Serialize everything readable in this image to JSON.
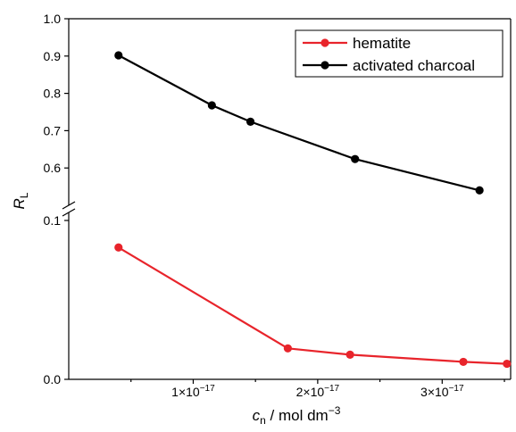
{
  "chart_data": {
    "type": "line",
    "xlabel": {
      "italic": "c",
      "subscript": "n",
      "rest": " / mol dm",
      "superscript": "−3"
    },
    "ylabel": {
      "italic": "R",
      "subscript": "L"
    },
    "x_tick_labels": [
      {
        "value": 1e-17,
        "mantissa": "1×10",
        "exponent": "−17"
      },
      {
        "value": 2e-17,
        "mantissa": "2×10",
        "exponent": "−17"
      },
      {
        "value": 3e-17,
        "mantissa": "3×10",
        "exponent": "−17"
      }
    ],
    "xlim": [
      0,
      3.55e-17
    ],
    "y_axis_break": true,
    "y_upper_segment": {
      "range": [
        0.5,
        1.0
      ],
      "ticks": [
        {
          "value": 0.6,
          "label": "0.6"
        },
        {
          "value": 0.7,
          "label": "0.7"
        },
        {
          "value": 0.8,
          "label": "0.8"
        },
        {
          "value": 0.9,
          "label": "0.9"
        },
        {
          "value": 1.0,
          "label": "1.0"
        }
      ]
    },
    "y_lower_segment": {
      "range": [
        0.0,
        0.1
      ],
      "ticks": [
        {
          "value": 0.0,
          "label": "0.0"
        },
        {
          "value": 0.1,
          "label": "0.1"
        }
      ]
    },
    "legend_position": "top-right",
    "series": [
      {
        "name": "hematite",
        "color": "#e8242b",
        "x": [
          4e-18,
          1.76e-17,
          2.26e-17,
          3.17e-17,
          3.52e-17
        ],
        "y": [
          0.083,
          0.0195,
          0.0155,
          0.011,
          0.0098
        ]
      },
      {
        "name": "activated charcoal",
        "color": "#000000",
        "x": [
          4e-18,
          1.15e-17,
          1.46e-17,
          2.3e-17,
          3.3e-17
        ],
        "y": [
          0.902,
          0.768,
          0.724,
          0.624,
          0.54
        ]
      }
    ]
  }
}
